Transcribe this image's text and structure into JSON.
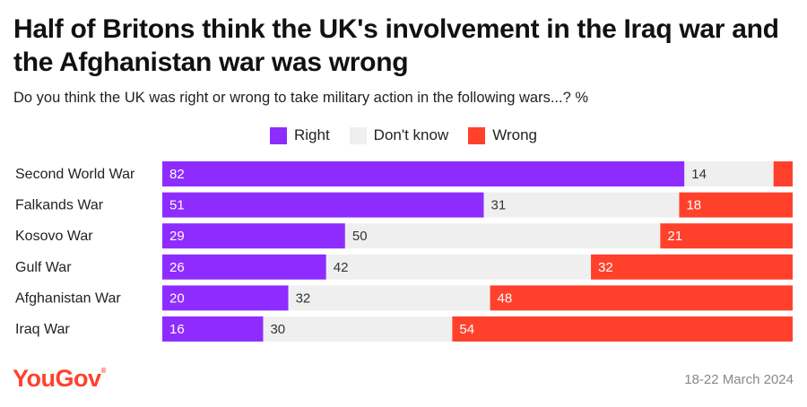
{
  "header": {
    "title": "Half of Britons think the UK's involvement in the Iraq war and the Afghanistan war was wrong",
    "subtitle": "Do you think the UK was right or wrong to take military action in the following wars...? %"
  },
  "footer": {
    "logo": "YouGov",
    "date": "18-22 March 2024"
  },
  "colors": {
    "right": "#8e2cff",
    "dont_know": "#efefef",
    "wrong": "#ff412c"
  },
  "chart_data": {
    "type": "bar",
    "stacked": true,
    "orientation": "horizontal",
    "title": "Half of Britons think the UK's involvement in the Iraq war and the Afghanistan war was wrong",
    "subtitle": "Do you think the UK was right or wrong to take military action in the following wars...? %",
    "legend_position": "top-center",
    "categories": [
      "Second World War",
      "Falkands War",
      "Kosovo War",
      "Gulf War",
      "Afghanistan War",
      "Iraq War"
    ],
    "series": [
      {
        "name": "Right",
        "color": "#8e2cff",
        "values": [
          82,
          51,
          29,
          26,
          20,
          16
        ]
      },
      {
        "name": "Don't know",
        "color": "#efefef",
        "values": [
          14,
          31,
          50,
          42,
          32,
          30
        ]
      },
      {
        "name": "Wrong",
        "color": "#ff412c",
        "values": [
          3,
          18,
          21,
          32,
          48,
          54
        ]
      }
    ],
    "value_labels": [
      [
        "82",
        "14",
        ""
      ],
      [
        "51",
        "31",
        "18"
      ],
      [
        "29",
        "50",
        "21"
      ],
      [
        "26",
        "42",
        "32"
      ],
      [
        "20",
        "32",
        "48"
      ],
      [
        "16",
        "30",
        "54"
      ]
    ]
  }
}
